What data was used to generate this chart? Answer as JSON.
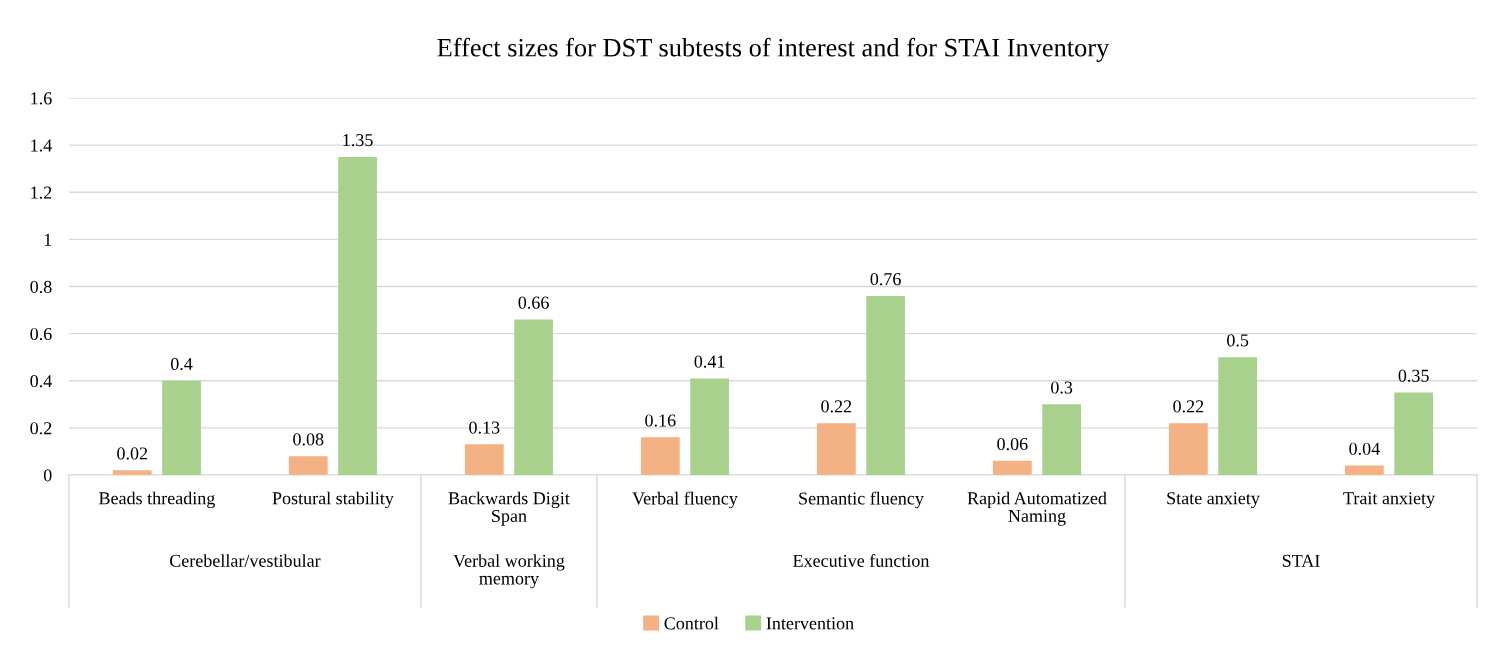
{
  "chart_data": {
    "type": "bar",
    "title": "Effect sizes for DST subtests of interest and for STAI Inventory",
    "categories": [
      "Beads threading",
      "Postural stability",
      "Backwards Digit\nSpan",
      "Verbal fluency",
      "Semantic fluency",
      "Rapid Automatized\nNaming",
      "State anxiety",
      "Trait anxiety"
    ],
    "series": [
      {
        "name": "Control",
        "color": "#f4b183",
        "values": [
          0.02,
          0.08,
          0.13,
          0.16,
          0.22,
          0.06,
          0.22,
          0.04
        ]
      },
      {
        "name": "Intervention",
        "color": "#a9d18e",
        "values": [
          0.4,
          1.35,
          0.66,
          0.41,
          0.76,
          0.3,
          0.5,
          0.35
        ]
      }
    ],
    "annotations": [
      "Cerebellar/vestibular",
      "Verbal working\nmemory",
      "Executive function",
      "STAI"
    ],
    "ylim": [
      0,
      1.6
    ],
    "yticks": [
      0,
      0.2,
      0.4,
      0.6,
      0.8,
      1,
      1.2,
      1.4,
      1.6
    ],
    "grid": "y",
    "legend": "bottom",
    "data_labels": true
  }
}
